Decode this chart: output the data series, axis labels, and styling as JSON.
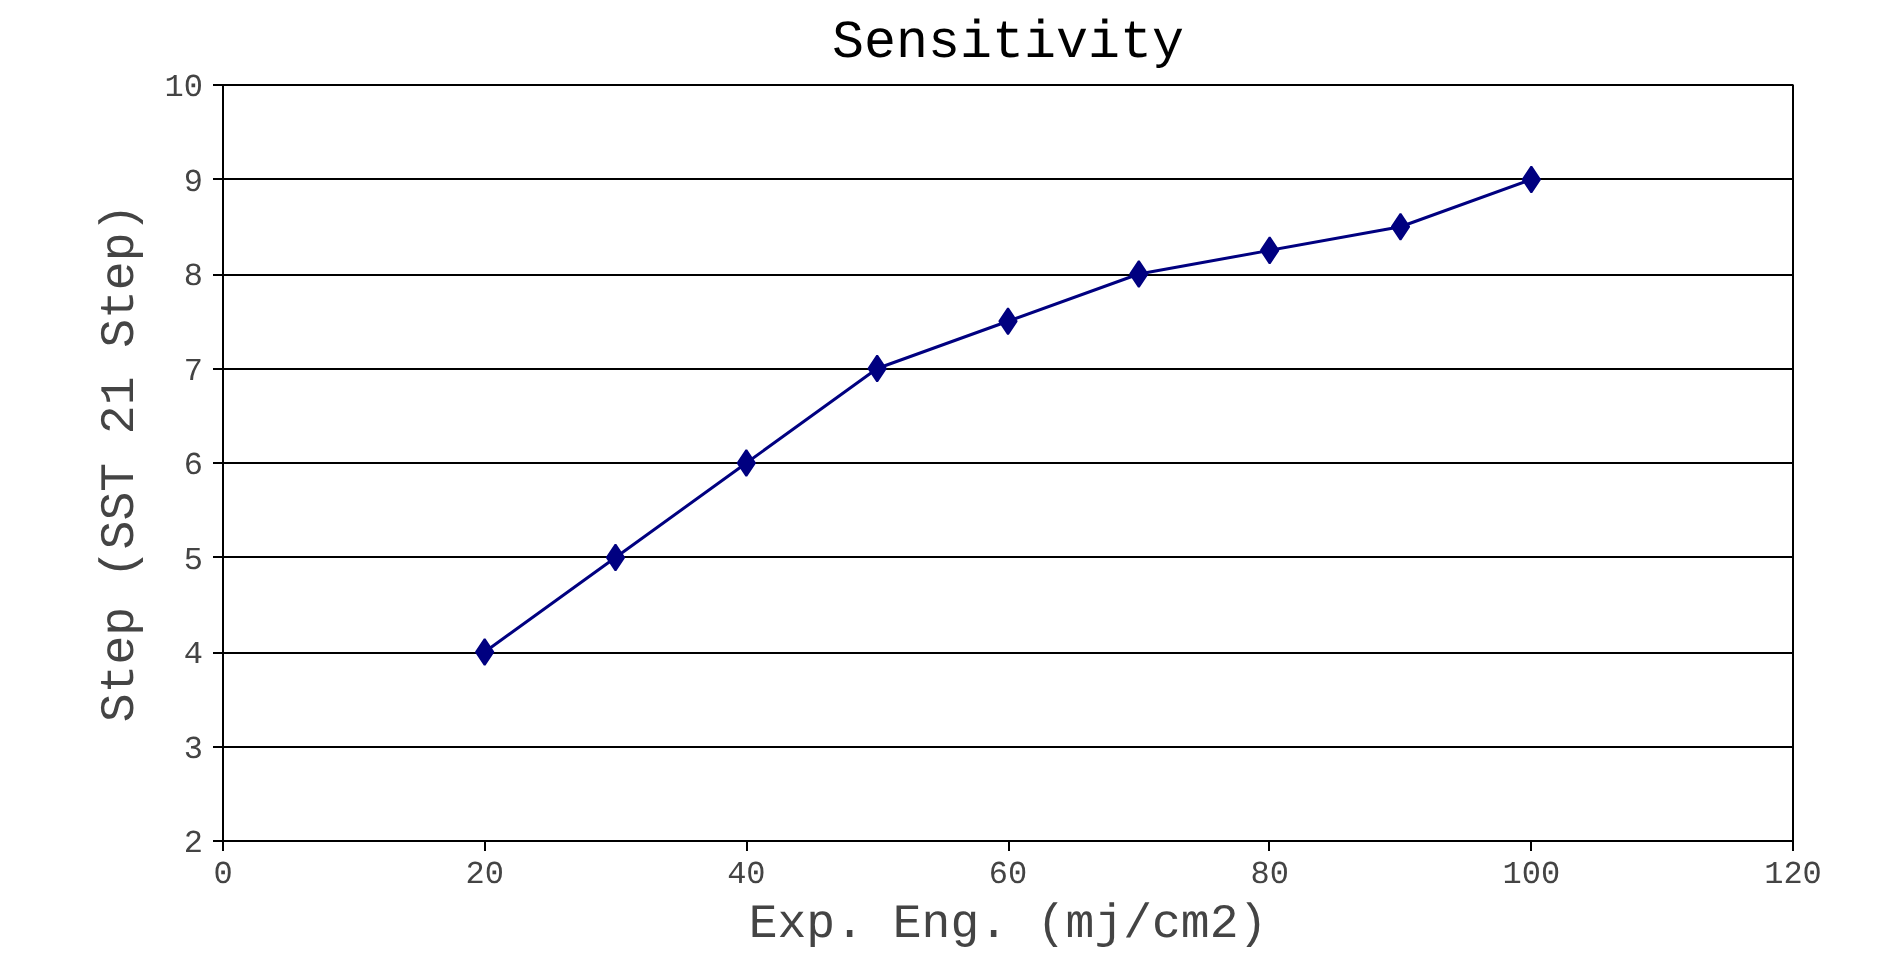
{
  "chart_data": {
    "type": "line",
    "title": "Sensitivity",
    "xlabel": "Exp. Eng. (mj/cm2)",
    "ylabel": "Step (SST 21 Step)",
    "x": [
      20,
      30,
      40,
      50,
      60,
      70,
      80,
      90,
      100
    ],
    "series": [
      {
        "color": "#000080",
        "values": [
          4,
          5,
          6,
          7,
          7.5,
          8,
          8.25,
          8.5,
          9
        ]
      }
    ],
    "xlim": [
      0,
      120
    ],
    "xticks": [
      0,
      20,
      40,
      60,
      80,
      100,
      120
    ],
    "ylim": [
      2,
      10
    ],
    "yticks": [
      2,
      3,
      4,
      5,
      6,
      7,
      8,
      9,
      10
    ],
    "grid": "y",
    "marker": "diamond",
    "line_style": "solid"
  }
}
